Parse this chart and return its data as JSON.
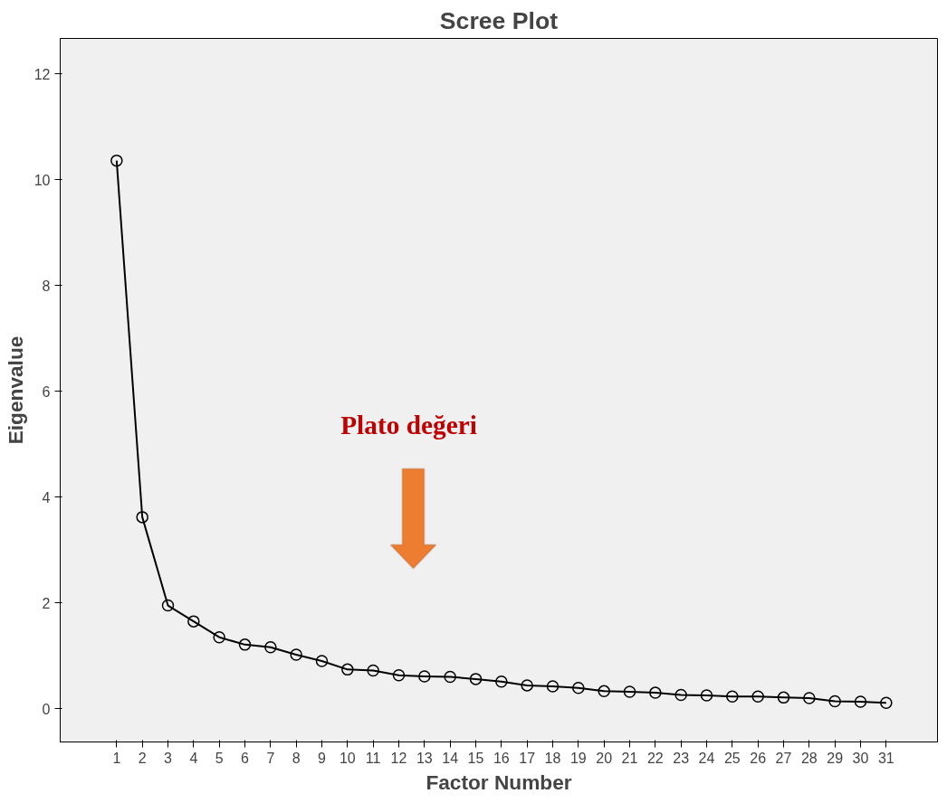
{
  "chart_data": {
    "type": "line",
    "title": "Scree Plot",
    "xlabel": "Factor Number",
    "ylabel": "Eigenvalue",
    "x": [
      1,
      2,
      3,
      4,
      5,
      6,
      7,
      8,
      9,
      10,
      11,
      12,
      13,
      14,
      15,
      16,
      17,
      18,
      19,
      20,
      21,
      22,
      23,
      24,
      25,
      26,
      27,
      28,
      29,
      30,
      31
    ],
    "series": [
      {
        "color": "#000000",
        "values": [
          10.36,
          3.62,
          1.95,
          1.65,
          1.35,
          1.21,
          1.16,
          1.02,
          0.9,
          0.74,
          0.72,
          0.63,
          0.61,
          0.6,
          0.56,
          0.51,
          0.44,
          0.42,
          0.39,
          0.33,
          0.32,
          0.3,
          0.26,
          0.25,
          0.23,
          0.23,
          0.21,
          0.2,
          0.14,
          0.13,
          0.11
        ]
      }
    ],
    "xlim": [
      -1.2,
      33
    ],
    "ylim": [
      -0.63,
      12.67
    ],
    "xticks": [
      1,
      2,
      3,
      4,
      5,
      6,
      7,
      8,
      9,
      10,
      11,
      12,
      13,
      14,
      15,
      16,
      17,
      18,
      19,
      20,
      21,
      22,
      23,
      24,
      25,
      26,
      27,
      28,
      29,
      30,
      31
    ],
    "yticks": [
      0,
      2,
      4,
      6,
      8,
      10,
      12
    ],
    "marker": "circle",
    "line_style": "solid",
    "grid": false,
    "annotations": [
      "Plato değeri"
    ]
  }
}
